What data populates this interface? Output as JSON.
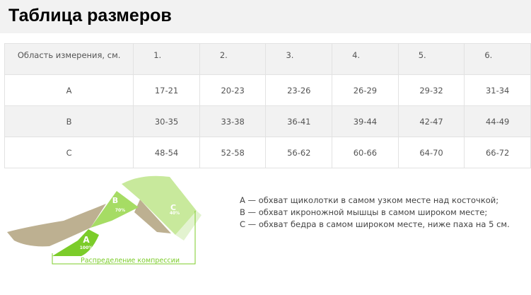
{
  "title": "Таблица размеров",
  "table": {
    "headers": [
      "Область измерения, см.",
      "1.",
      "2.",
      "3.",
      "4.",
      "5.",
      "6."
    ],
    "rows": [
      [
        "A",
        "17-21",
        "20-23",
        "23-26",
        "26-29",
        "29-32",
        "31-34"
      ],
      [
        "B",
        "30-35",
        "33-38",
        "36-41",
        "39-44",
        "42-47",
        "44-49"
      ],
      [
        "C",
        "48-54",
        "52-58",
        "56-62",
        "60-66",
        "64-70",
        "66-72"
      ]
    ]
  },
  "diagram": {
    "zones": [
      {
        "label": "A",
        "pct": "100%"
      },
      {
        "label": "B",
        "pct": "70%"
      },
      {
        "label": "C",
        "pct": "40%"
      }
    ],
    "caption": "Распределение компрессии",
    "colors": {
      "dark_green": "#7ccc2a",
      "mid_green": "#a6dc64",
      "light_green": "#c8e99c",
      "skin": "#bdb091"
    }
  },
  "legend": [
    "A — обхват щиколотки в самом узком месте над косточкой;",
    "B — обхват икроножной мышцы в самом широком месте;",
    "C — обхват бедра в самом широком месте, ниже паха на 5 см."
  ]
}
